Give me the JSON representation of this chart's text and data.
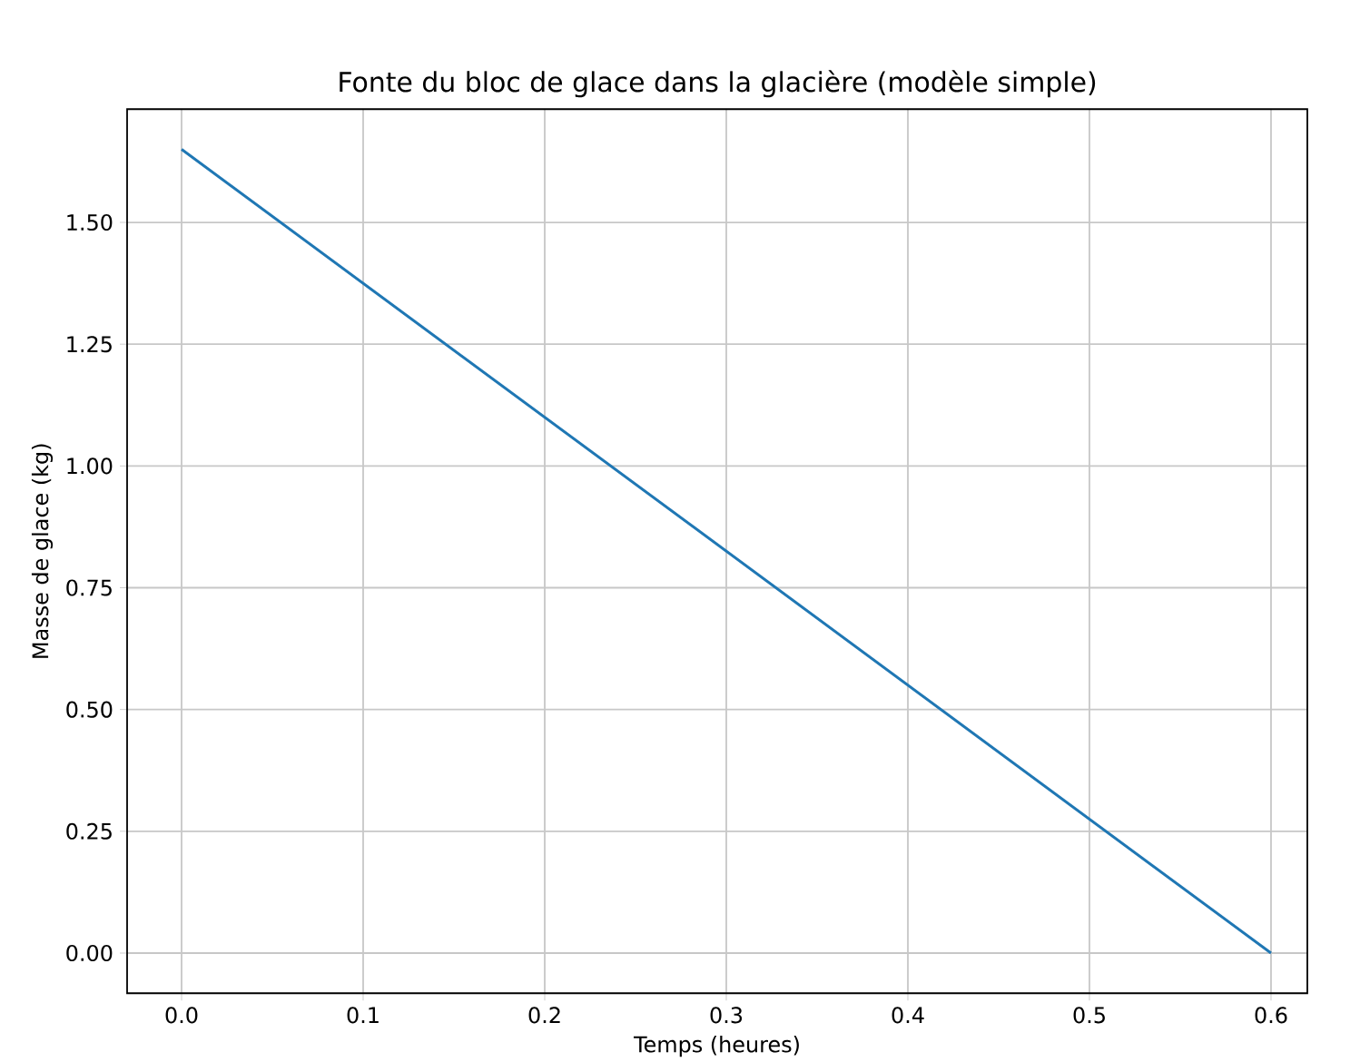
{
  "chart_data": {
    "type": "line",
    "title": "Fonte du bloc de glace dans la glacière (modèle simple)",
    "xlabel": "Temps (heures)",
    "ylabel": "Masse de glace (kg)",
    "x": [
      0.0,
      0.6
    ],
    "series": [
      {
        "color": "#1f77b4",
        "values": [
          1.65,
          0.0
        ]
      }
    ],
    "xlim": [
      -0.03,
      0.62
    ],
    "xticks": [
      {
        "value": 0.0,
        "label": "0.0"
      },
      0.1,
      0.2,
      0.3,
      0.4,
      0.5,
      0.6
    ],
    "ylim": [
      -0.0825,
      1.7325
    ],
    "yticks": [
      {
        "value": 0.0,
        "label": "0.00"
      },
      {
        "value": 0.25,
        "label": "0.25"
      },
      {
        "value": 0.5,
        "label": "0.50"
      },
      {
        "value": 0.75,
        "label": "0.75"
      },
      {
        "value": 1.0,
        "label": "1.00"
      },
      {
        "value": 1.25,
        "label": "1.25"
      },
      {
        "value": 1.5,
        "label": "1.50"
      }
    ],
    "grid": true,
    "marker": "none",
    "line_style": "solid"
  }
}
